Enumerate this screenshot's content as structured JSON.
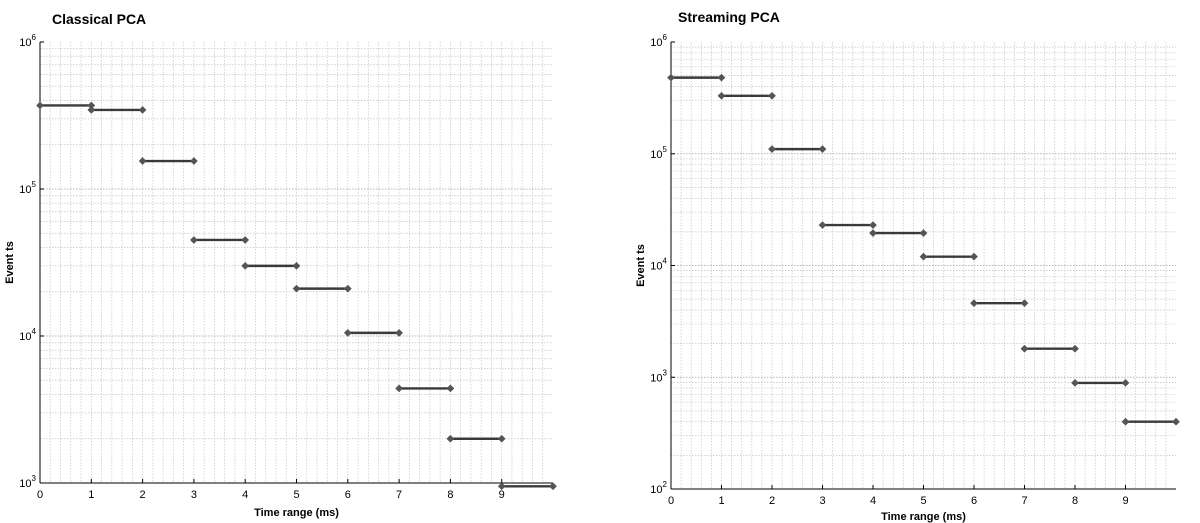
{
  "chart_data": [
    {
      "type": "line",
      "title": "Classical PCA",
      "xlabel": "Time range (ms)",
      "ylabel": "Event ts",
      "yscale": "log",
      "xlim": [
        0,
        10
      ],
      "ylim": [
        1000,
        1000000
      ],
      "grid": true,
      "x_ticks": [
        "0",
        "1",
        "2",
        "3",
        "4",
        "5",
        "6",
        "7",
        "8",
        "9"
      ],
      "y_ticks": [
        {
          "base": "10",
          "exp": "3"
        },
        {
          "base": "10",
          "exp": "4"
        },
        {
          "base": "10",
          "exp": "5"
        },
        {
          "base": "10",
          "exp": "6"
        }
      ],
      "segments": [
        {
          "x": [
            0,
            1
          ],
          "y": 370000
        },
        {
          "x": [
            1,
            2
          ],
          "y": 345000
        },
        {
          "x": [
            2,
            3
          ],
          "y": 155000
        },
        {
          "x": [
            3,
            4
          ],
          "y": 45000
        },
        {
          "x": [
            4,
            5
          ],
          "y": 30000
        },
        {
          "x": [
            5,
            6
          ],
          "y": 21000
        },
        {
          "x": [
            6,
            7
          ],
          "y": 10500
        },
        {
          "x": [
            7,
            8
          ],
          "y": 4400
        },
        {
          "x": [
            8,
            9
          ],
          "y": 2000
        },
        {
          "x": [
            9,
            10
          ],
          "y": 950
        }
      ]
    },
    {
      "type": "line",
      "title": "Streaming PCA",
      "xlabel": "Time range (ms)",
      "ylabel": "Event ts",
      "yscale": "log",
      "xlim": [
        0,
        10
      ],
      "ylim": [
        100,
        1000000
      ],
      "grid": true,
      "x_ticks": [
        "0",
        "1",
        "2",
        "3",
        "4",
        "5",
        "6",
        "7",
        "8",
        "9"
      ],
      "y_ticks": [
        {
          "base": "10",
          "exp": "2"
        },
        {
          "base": "10",
          "exp": "3"
        },
        {
          "base": "10",
          "exp": "4"
        },
        {
          "base": "10",
          "exp": "5"
        },
        {
          "base": "10",
          "exp": "6"
        }
      ],
      "segments": [
        {
          "x": [
            0,
            1
          ],
          "y": 480000
        },
        {
          "x": [
            1,
            2
          ],
          "y": 330000
        },
        {
          "x": [
            2,
            3
          ],
          "y": 110000
        },
        {
          "x": [
            3,
            4
          ],
          "y": 23000
        },
        {
          "x": [
            4,
            5
          ],
          "y": 19500
        },
        {
          "x": [
            5,
            6
          ],
          "y": 12000
        },
        {
          "x": [
            6,
            7
          ],
          "y": 4600
        },
        {
          "x": [
            7,
            8
          ],
          "y": 1800
        },
        {
          "x": [
            8,
            9
          ],
          "y": 890
        },
        {
          "x": [
            9,
            10
          ],
          "y": 400
        }
      ]
    }
  ]
}
